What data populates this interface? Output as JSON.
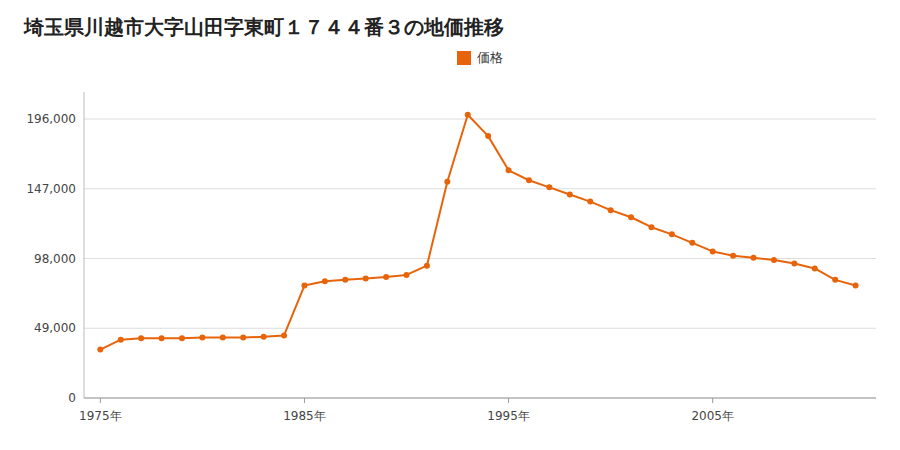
{
  "chart_data": {
    "type": "line",
    "title": "埼玉県川越市大字山田字東町１７４４番３の地価推移",
    "x": [
      1975,
      1976,
      1977,
      1978,
      1979,
      1980,
      1981,
      1982,
      1983,
      1984,
      1985,
      1986,
      1987,
      1988,
      1989,
      1990,
      1991,
      1992,
      1993,
      1994,
      1995,
      1996,
      1997,
      1998,
      1999,
      2000,
      2001,
      2002,
      2003,
      2004,
      2005,
      2006,
      2007,
      2008,
      2009,
      2010,
      2011,
      2012
    ],
    "series": [
      {
        "name": "価格",
        "color": "#E8640A",
        "values": [
          34000,
          41000,
          42000,
          42000,
          42000,
          42500,
          42500,
          42500,
          43000,
          44000,
          79000,
          82000,
          83000,
          84000,
          85000,
          86500,
          93000,
          152000,
          199000,
          184000,
          160000,
          153000,
          148000,
          143000,
          138000,
          132000,
          127000,
          120000,
          115000,
          109000,
          103000,
          100000,
          98500,
          97000,
          94500,
          91000,
          83000,
          79000
        ]
      }
    ],
    "xlim": [
      1974.2,
      2013.0
    ],
    "xticks": [
      {
        "value": 1975,
        "label": "1975年"
      },
      {
        "value": 1985,
        "label": "1985年"
      },
      {
        "value": 1995,
        "label": "1995年"
      },
      {
        "value": 2005,
        "label": "2005年"
      }
    ],
    "ylim": [
      0,
      215000
    ],
    "yticks": [
      0,
      {
        "value": 49000,
        "label": "49,000"
      },
      {
        "value": 98000,
        "label": "98,000"
      },
      {
        "value": 147000,
        "label": "147,000"
      },
      {
        "value": 196000,
        "label": "196,000"
      }
    ],
    "grid": true,
    "legend": "top",
    "marker": "circle"
  }
}
